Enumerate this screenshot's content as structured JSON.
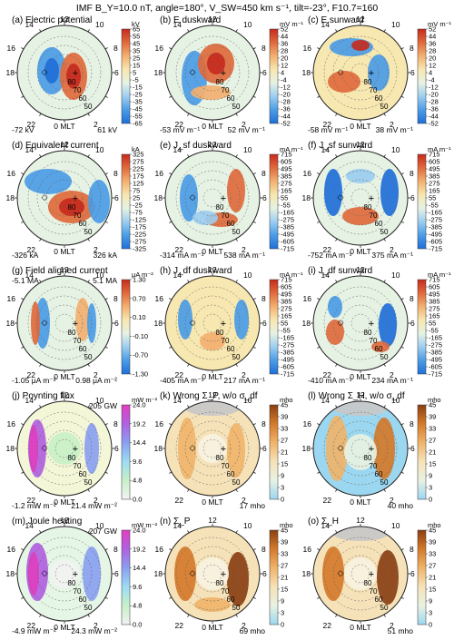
{
  "figure": {
    "header": "IMF B_Y=10.0 nT, angle=180°, V_SW=450 km s⁻¹, tilt=-23°, F10.7=160"
  },
  "colors": {
    "diverging": [
      "#1e6fd9",
      "#4b9ce6",
      "#9ccdf0",
      "#e6f2e4",
      "#f7e7b0",
      "#f3b070",
      "#e06a3c",
      "#c62a1e"
    ],
    "conductance": [
      "#9bd7f0",
      "#e8f2e2",
      "#f6e2b8",
      "#efb46a",
      "#d47a2a",
      "#8a3f12"
    ],
    "energy": [
      "#f2f2f2",
      "#c8f0c8",
      "#9cdcf4",
      "#8aa0f0",
      "#b060e0",
      "#e040c0"
    ]
  },
  "chart_data": [
    {
      "type": "heatmap",
      "panel": "(a) Electric potential",
      "unit": "kV",
      "colorbar_ticks": [
        "65",
        "55",
        "45",
        "35",
        "25",
        "15",
        "5",
        "-5",
        "-15",
        "-25",
        "-35",
        "-45",
        "-55",
        "-65"
      ],
      "left_value": "-72 kV",
      "right_value": "61 kV",
      "mlt_labels": [
        "12",
        "14",
        "10",
        "16",
        "8",
        "18",
        "6",
        "22",
        "2",
        "0 MLT"
      ],
      "lat_labels": [
        "80",
        "70",
        "60",
        "50"
      ]
    },
    {
      "type": "heatmap",
      "panel": "(b) E duskward",
      "unit": "mV m⁻¹",
      "colorbar_ticks": [
        "52",
        "44",
        "36",
        "28",
        "20",
        "12",
        "4",
        "-4",
        "-12",
        "-20",
        "-28",
        "-36",
        "-44",
        "-52"
      ],
      "left_value": "-53 mV m⁻¹",
      "right_value": "52 mV m⁻¹",
      "mlt_labels": [
        "12",
        "14",
        "10",
        "16",
        "8",
        "18",
        "6",
        "22",
        "2",
        "0 MLT"
      ],
      "lat_labels": [
        "80",
        "70",
        "60",
        "50"
      ]
    },
    {
      "type": "heatmap",
      "panel": "(c) E sunward",
      "unit": "mV m⁻¹",
      "colorbar_ticks": [
        "52",
        "44",
        "36",
        "28",
        "20",
        "12",
        "4",
        "-4",
        "-12",
        "-20",
        "-28",
        "-36",
        "-44",
        "-52"
      ],
      "left_value": "-58 mV m⁻¹",
      "right_value": "38 mV m⁻¹",
      "mlt_labels": [
        "12",
        "14",
        "10",
        "16",
        "8",
        "18",
        "6",
        "22",
        "2",
        "0 MLT"
      ],
      "lat_labels": [
        "80",
        "70",
        "60",
        "50"
      ]
    },
    {
      "type": "heatmap",
      "panel": "(d) Equivalent current",
      "unit": "kA",
      "colorbar_ticks": [
        "325",
        "275",
        "225",
        "175",
        "125",
        "75",
        "25",
        "-25",
        "-75",
        "-125",
        "-175",
        "-225",
        "-275",
        "-325"
      ],
      "left_value": "-326 kA",
      "right_value": "326 kA",
      "mlt_labels": [
        "12",
        "14",
        "10",
        "16",
        "8",
        "18",
        "6",
        "22",
        "2",
        "0 MLT"
      ],
      "lat_labels": [
        "80",
        "70",
        "60",
        "50"
      ]
    },
    {
      "type": "heatmap",
      "panel": "(e) J_sf duskward",
      "unit": "mA m⁻¹",
      "colorbar_ticks": [
        "715",
        "605",
        "495",
        "385",
        "275",
        "165",
        "55",
        "-55",
        "-165",
        "-275",
        "-385",
        "-495",
        "-605",
        "-715"
      ],
      "left_value": "-314 mA m⁻¹",
      "right_value": "538 mA m⁻¹",
      "mlt_labels": [
        "12",
        "14",
        "10",
        "16",
        "8",
        "18",
        "6",
        "22",
        "2",
        "0 MLT"
      ],
      "lat_labels": [
        "80",
        "70",
        "60",
        "50"
      ]
    },
    {
      "type": "heatmap",
      "panel": "(f) J_sf sunward",
      "unit": "mA m⁻¹",
      "colorbar_ticks": [
        "715",
        "605",
        "495",
        "385",
        "275",
        "165",
        "55",
        "-55",
        "-165",
        "-275",
        "-385",
        "-495",
        "-605",
        "-715"
      ],
      "left_value": "-752 mA m⁻¹",
      "right_value": "375 mA m⁻¹",
      "mlt_labels": [
        "12",
        "14",
        "10",
        "16",
        "8",
        "18",
        "6",
        "22",
        "2",
        "0 MLT"
      ],
      "lat_labels": [
        "80",
        "70",
        "60",
        "50"
      ]
    },
    {
      "type": "heatmap",
      "panel": "(g) Field aligned current",
      "unit": "μA m⁻²",
      "colorbar_ticks": [
        "1.30",
        "0.70",
        "0.10",
        "-0.10",
        "-0.70",
        "-1.30"
      ],
      "left_value": "-1.05 μA m⁻²",
      "right_value": "0.98 μA m⁻²",
      "top_left": "-5.1 MA",
      "top_right": "5.1 MA",
      "mlt_labels": [
        "12",
        "14",
        "10",
        "16",
        "8",
        "18",
        "6",
        "22",
        "2",
        "0 MLT"
      ],
      "lat_labels": [
        "80",
        "70",
        "60",
        "50"
      ]
    },
    {
      "type": "heatmap",
      "panel": "(h) J_df duskward",
      "unit": "mA m⁻¹",
      "colorbar_ticks": [
        "715",
        "605",
        "495",
        "385",
        "275",
        "165",
        "55",
        "-55",
        "-165",
        "-275",
        "-385",
        "-495",
        "-605",
        "-715"
      ],
      "left_value": "-405 mA m⁻¹",
      "right_value": "217 mA m⁻¹",
      "mlt_labels": [
        "12",
        "14",
        "10",
        "16",
        "8",
        "18",
        "6",
        "22",
        "2",
        "0 MLT"
      ],
      "lat_labels": [
        "80",
        "70",
        "60",
        "50"
      ]
    },
    {
      "type": "heatmap",
      "panel": "(i) J_df sunward",
      "unit": "mA m⁻¹",
      "colorbar_ticks": [
        "715",
        "605",
        "495",
        "385",
        "275",
        "165",
        "55",
        "-55",
        "-165",
        "-275",
        "-385",
        "-495",
        "-605",
        "-715"
      ],
      "left_value": "-410 mA m⁻¹",
      "right_value": "234 mA m⁻¹",
      "mlt_labels": [
        "12",
        "14",
        "10",
        "16",
        "8",
        "18",
        "6",
        "22",
        "2",
        "0 MLT"
      ],
      "lat_labels": [
        "80",
        "70",
        "60",
        "50"
      ]
    },
    {
      "type": "heatmap",
      "panel": "(j) Poynting flux",
      "unit": "mW m⁻²",
      "colorbar_ticks": [
        "24.0",
        "19.2",
        "14.4",
        "9.6",
        "4.8",
        "0.0"
      ],
      "left_value": "-1.2 mW m⁻²",
      "right_value": "21.4 mW m⁻²",
      "top_right": "205 GW",
      "mlt_labels": [
        "12",
        "14",
        "10",
        "16",
        "8",
        "18",
        "6",
        "22",
        "2",
        "0 MLT"
      ],
      "lat_labels": [
        "80",
        "70",
        "60",
        "50"
      ]
    },
    {
      "type": "heatmap",
      "panel": "(k) Wrong Σ_P, w/o σ_df",
      "unit": "mho",
      "colorbar_ticks": [
        "45",
        "39",
        "33",
        "27",
        "21",
        "15",
        "9",
        "3",
        "0"
      ],
      "left_value": "",
      "right_value": "17 mho",
      "mlt_labels": [
        "12",
        "14",
        "10",
        "16",
        "8",
        "18",
        "6",
        "22",
        "2",
        "0 MLT"
      ],
      "lat_labels": [
        "80",
        "70",
        "60",
        "50"
      ]
    },
    {
      "type": "heatmap",
      "panel": "(l) Wrong Σ_H, w/o σ_df",
      "unit": "mho",
      "colorbar_ticks": [
        "45",
        "39",
        "33",
        "27",
        "21",
        "15",
        "9",
        "3",
        "0"
      ],
      "left_value": "",
      "right_value": "40 mho",
      "mlt_labels": [
        "12",
        "14",
        "10",
        "16",
        "8",
        "18",
        "6",
        "22",
        "2",
        "0 MLT"
      ],
      "lat_labels": [
        "80",
        "70",
        "60",
        "50"
      ]
    },
    {
      "type": "heatmap",
      "panel": "(m) Joule heating",
      "unit": "mW m⁻²",
      "colorbar_ticks": [
        "24.0",
        "19.2",
        "14.4",
        "9.6",
        "4.8",
        "0.0"
      ],
      "left_value": "-4.9 mW m⁻²",
      "right_value": "24.3 mW m⁻²",
      "top_right": "207 GW",
      "mlt_labels": [
        "12",
        "14",
        "10",
        "16",
        "8",
        "18",
        "6",
        "22",
        "2",
        "0 MLT"
      ],
      "lat_labels": [
        "80",
        "70",
        "60",
        "50"
      ]
    },
    {
      "type": "heatmap",
      "panel": "(n) Σ_P",
      "unit": "mho",
      "colorbar_ticks": [
        "45",
        "39",
        "33",
        "27",
        "21",
        "15",
        "9",
        "3",
        "0"
      ],
      "left_value": "",
      "right_value": "69 mho",
      "mlt_labels": [
        "12",
        "14",
        "10",
        "16",
        "8",
        "18",
        "6",
        "22",
        "2",
        "0 MLT"
      ],
      "lat_labels": [
        "80",
        "70",
        "60",
        "50"
      ]
    },
    {
      "type": "heatmap",
      "panel": "(o) Σ_H",
      "unit": "mho",
      "colorbar_ticks": [
        "45",
        "39",
        "33",
        "27",
        "21",
        "15",
        "9",
        "3",
        "0"
      ],
      "left_value": "",
      "right_value": "51 mho",
      "mlt_labels": [
        "12",
        "14",
        "10",
        "16",
        "8",
        "18",
        "6",
        "22",
        "2",
        "0 MLT"
      ],
      "lat_labels": [
        "80",
        "70",
        "60",
        "50"
      ]
    }
  ]
}
